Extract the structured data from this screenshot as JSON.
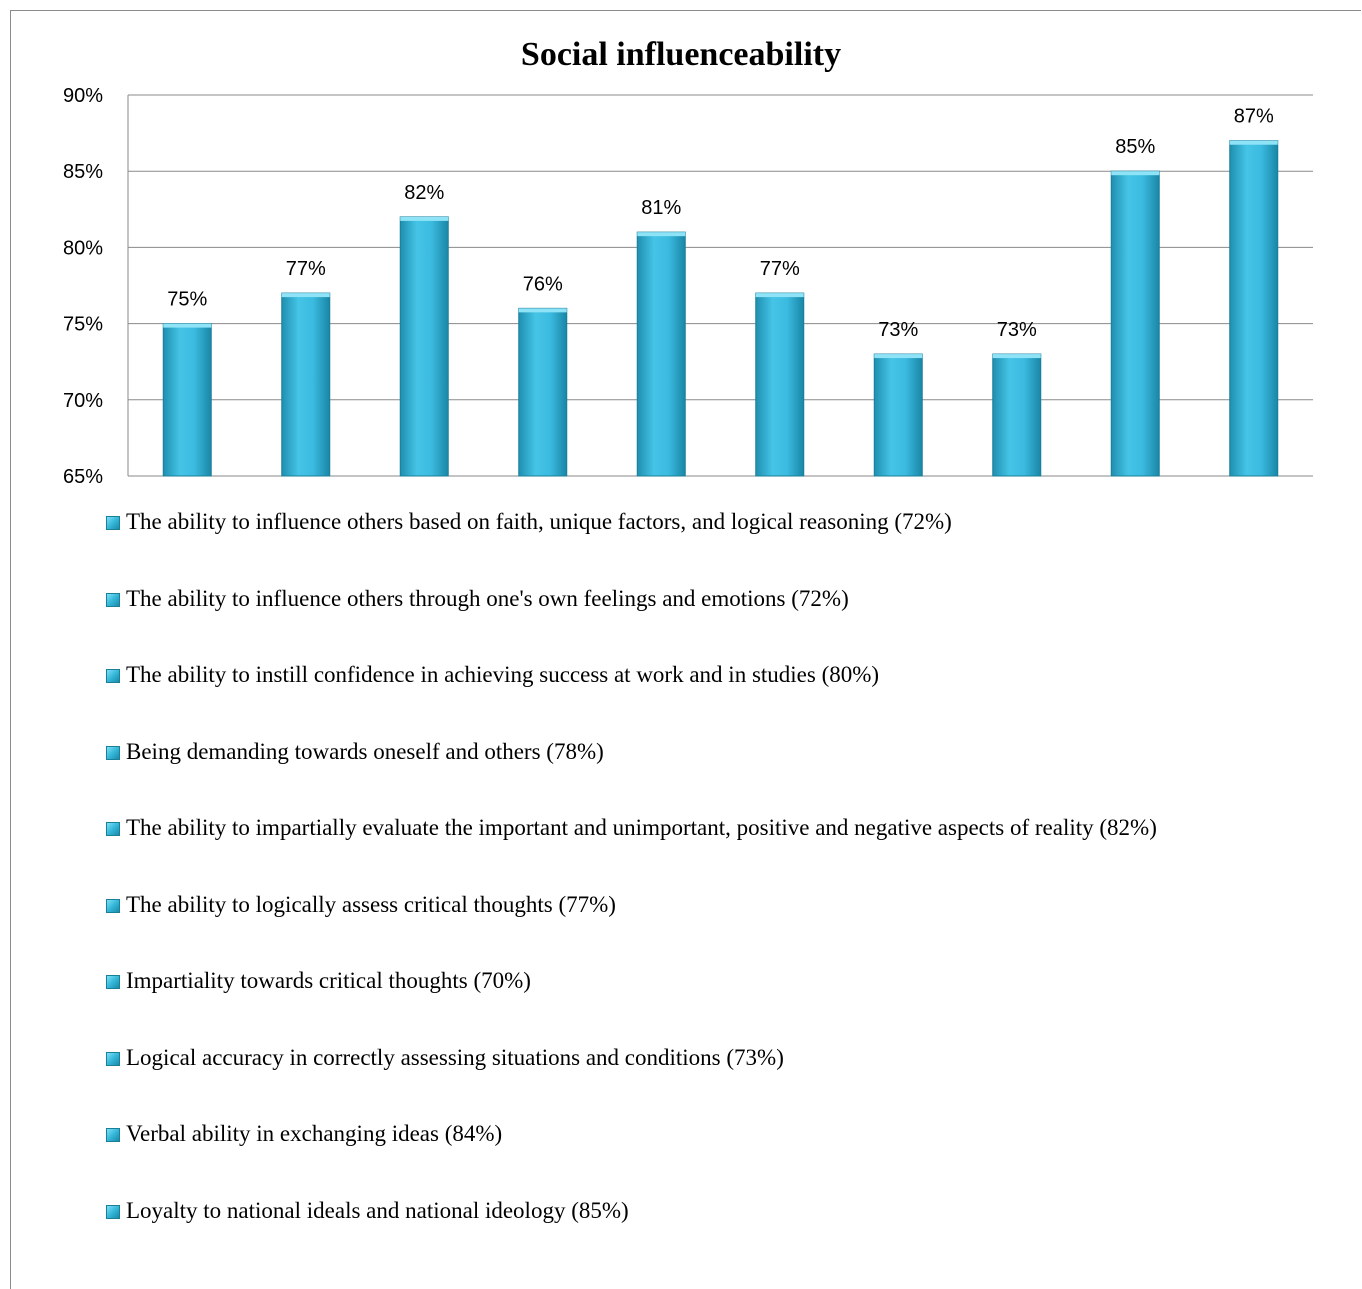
{
  "chart_data": {
    "type": "bar",
    "title": "Social influenceability",
    "xlabel": "",
    "ylabel": "",
    "ylim": [
      65,
      90
    ],
    "yticks": [
      65,
      70,
      75,
      80,
      85,
      90
    ],
    "ytick_suffix": "%",
    "grid": true,
    "legend_placement": "bottom",
    "bar_color": "#2fb3d6",
    "series": [
      {
        "name": "",
        "values": [
          75,
          77,
          82,
          76,
          81,
          77,
          73,
          73,
          85,
          87
        ],
        "labels": [
          "75%",
          "77%",
          "82%",
          "76%",
          "81%",
          "77%",
          "73%",
          "73%",
          "85%",
          "87%"
        ]
      }
    ],
    "categories": [
      "The ability to influence others based on faith, unique factors, and logical reasoning (72%)",
      "The ability to influence others through one's own feelings and emotions (72%)",
      "The ability to instill confidence in achieving success at work and in studies (80%)",
      "Being demanding towards oneself and others (78%)",
      "The ability to impartially evaluate the important and unimportant, positive and negative aspects of reality (82%)",
      "The ability to logically assess critical thoughts (77%)",
      "Impartiality towards critical thoughts (70%)",
      "Logical accuracy in correctly assessing situations and conditions (73%)",
      "Verbal ability in exchanging ideas (84%)",
      "Loyalty to national ideals and national ideology (85%)"
    ]
  }
}
